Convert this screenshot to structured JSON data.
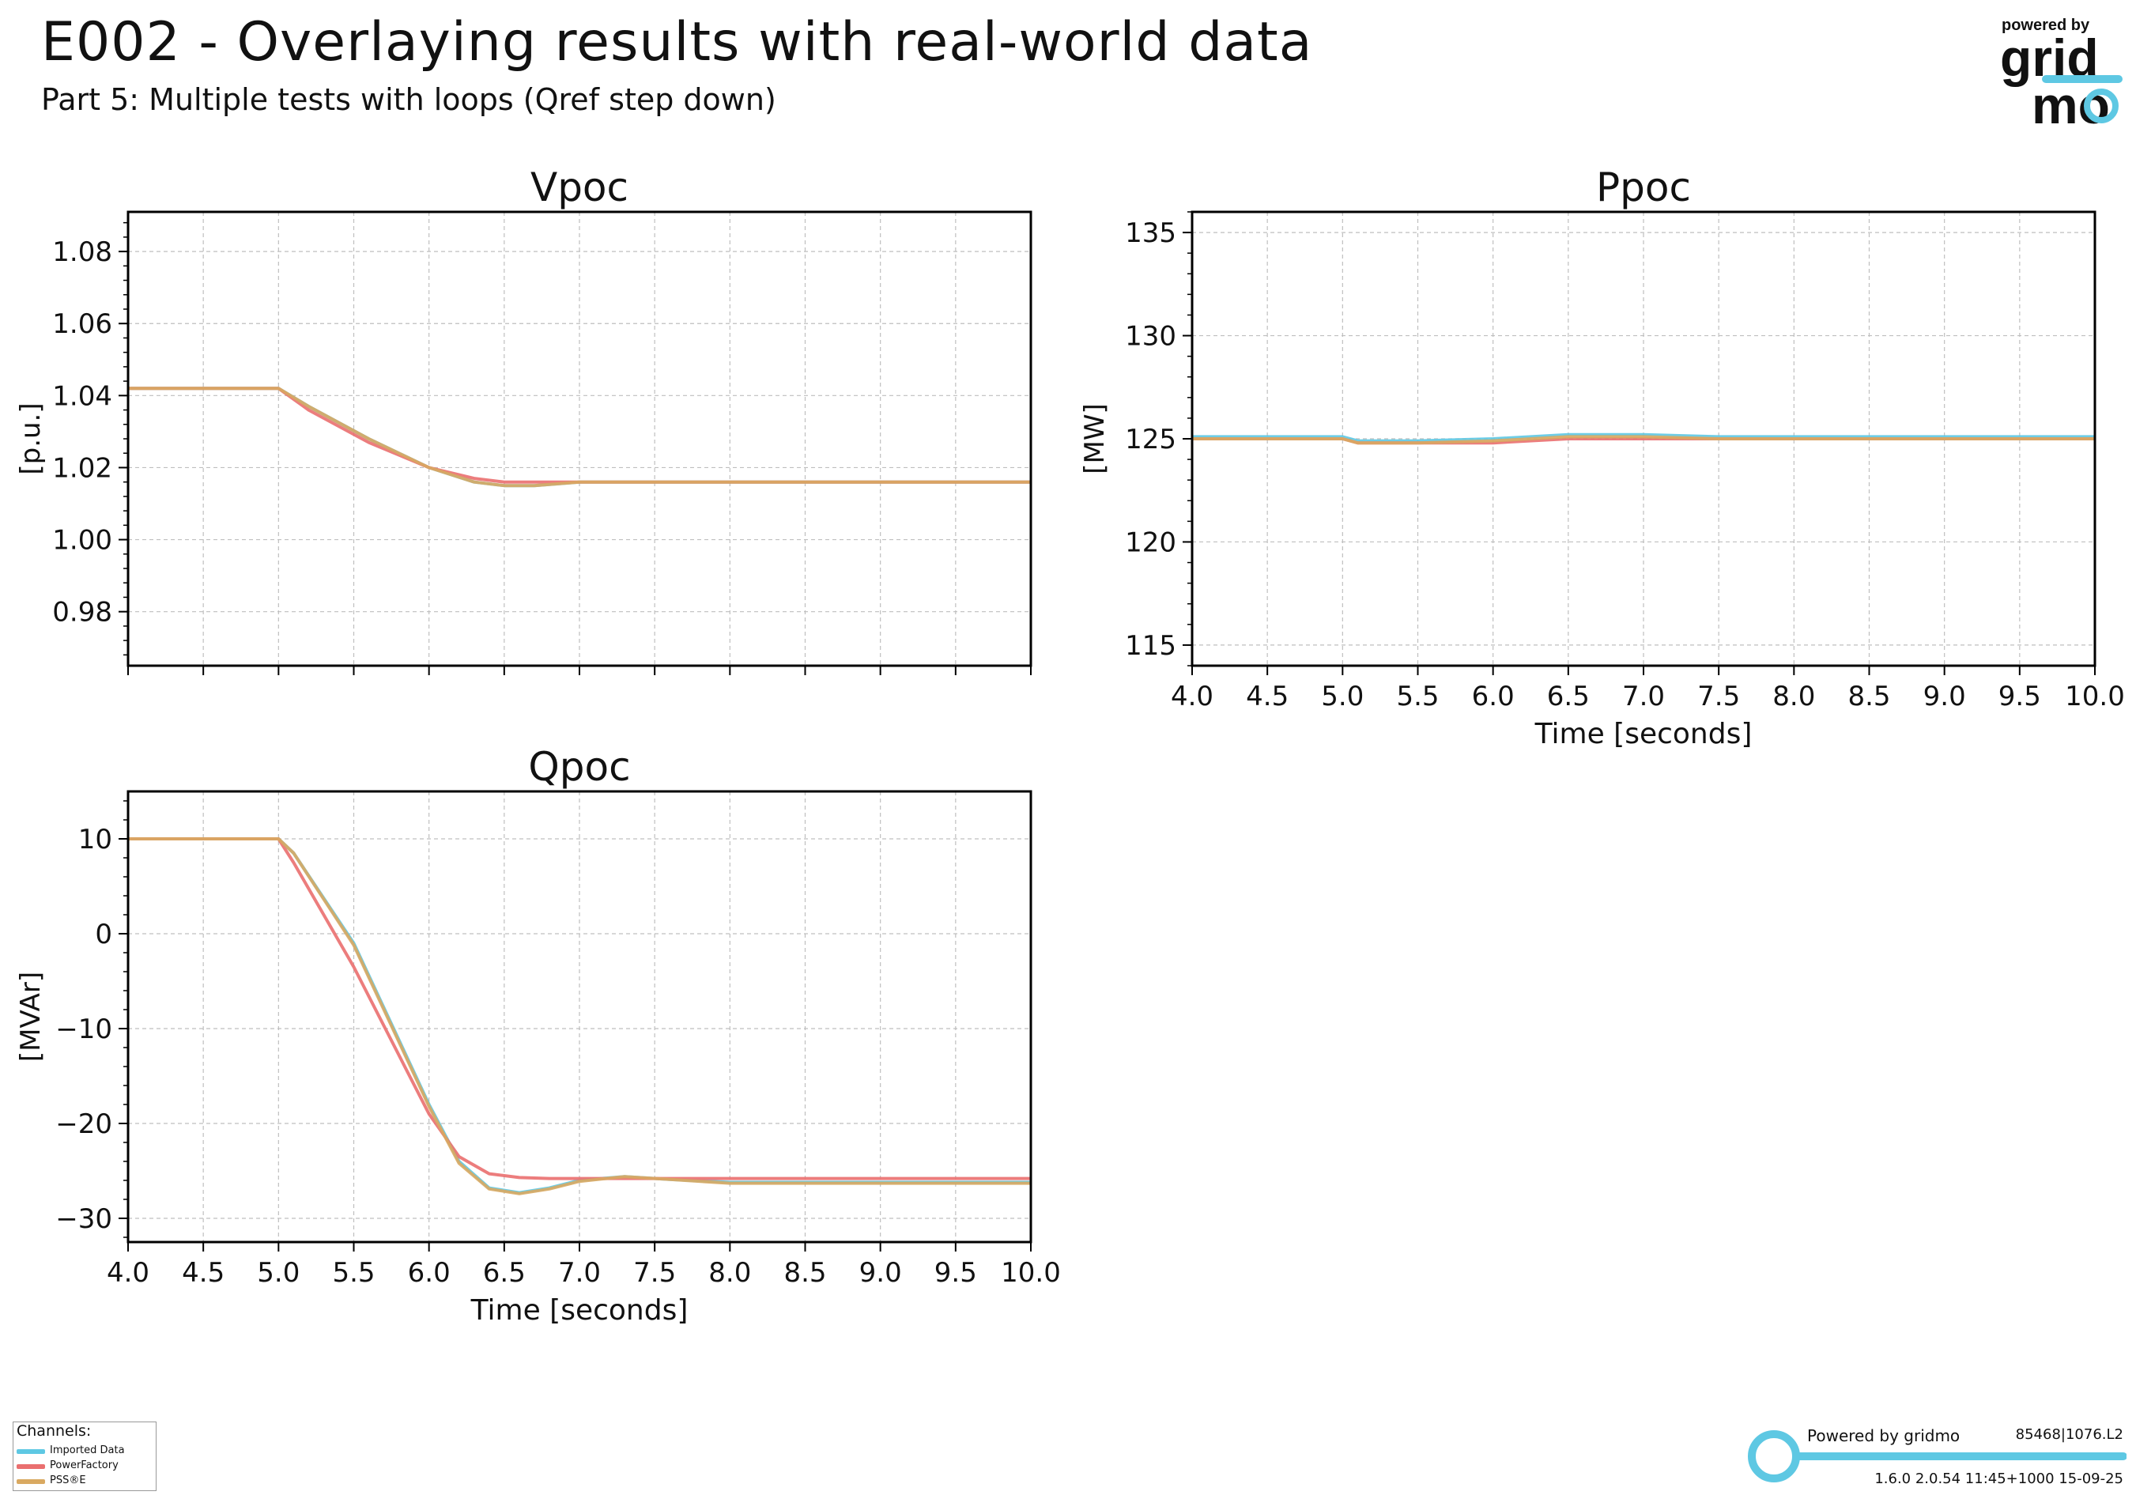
{
  "title": "E002 - Overlaying results with real-world data",
  "subtitle": "Part 5: Multiple tests with loops (Qref step down)",
  "logo": {
    "line1": "powered by",
    "line2": "grid",
    "line3": "mo"
  },
  "colors": {
    "imported": "#5ec8e3",
    "powerfactory": "#ea6f6f",
    "psse": "#d9a961",
    "grid": "#bfbfbf",
    "accent": "#5ec8e3"
  },
  "legend": {
    "title": "Channels:",
    "items": [
      {
        "label": "Imported Data",
        "color": "#5ec8e3"
      },
      {
        "label": "PowerFactory",
        "color": "#ea6f6f"
      },
      {
        "label": "PSS®E",
        "color": "#d9a961"
      }
    ]
  },
  "footer": {
    "powered": "Powered by gridmo",
    "code": "85468|1076.L2",
    "version": "1.6.0  2.0.54  11:45+1000 15-09-25"
  },
  "chart_data": [
    {
      "type": "line",
      "title": "Vpoc",
      "xlabel": "",
      "ylabel": "[p.u.]",
      "xlim": [
        4.0,
        10.0
      ],
      "ylim": [
        0.965,
        1.091
      ],
      "xticks": [
        4.0,
        4.5,
        5.0,
        5.5,
        6.0,
        6.5,
        7.0,
        7.5,
        8.0,
        8.5,
        9.0,
        9.5,
        10.0
      ],
      "yticks": [
        0.98,
        1.0,
        1.02,
        1.04,
        1.06,
        1.08
      ],
      "ytick_labels": [
        "0.98",
        "1.00",
        "1.02",
        "1.04",
        "1.06",
        "1.08"
      ],
      "show_xtick_labels": false,
      "grid": true,
      "series": [
        {
          "name": "Imported Data",
          "x": [
            4.0,
            5.0,
            5.2,
            5.6,
            6.0,
            6.3,
            6.5,
            6.7,
            7.0,
            7.5,
            8.0,
            9.0,
            10.0
          ],
          "y": [
            1.042,
            1.042,
            1.037,
            1.028,
            1.02,
            1.016,
            1.015,
            1.015,
            1.016,
            1.016,
            1.016,
            1.016,
            1.016
          ]
        },
        {
          "name": "PowerFactory",
          "x": [
            4.0,
            5.0,
            5.2,
            5.6,
            6.0,
            6.3,
            6.5,
            6.7,
            7.0,
            7.5,
            8.0,
            9.0,
            10.0
          ],
          "y": [
            1.042,
            1.042,
            1.036,
            1.027,
            1.02,
            1.017,
            1.016,
            1.016,
            1.016,
            1.016,
            1.016,
            1.016,
            1.016
          ]
        },
        {
          "name": "PSS®E",
          "x": [
            4.0,
            5.0,
            5.2,
            5.6,
            6.0,
            6.3,
            6.5,
            6.7,
            7.0,
            7.5,
            8.0,
            9.0,
            10.0
          ],
          "y": [
            1.042,
            1.042,
            1.037,
            1.028,
            1.02,
            1.016,
            1.015,
            1.015,
            1.016,
            1.016,
            1.016,
            1.016,
            1.016
          ]
        }
      ]
    },
    {
      "type": "line",
      "title": "Ppoc",
      "xlabel": "Time [seconds]",
      "ylabel": "[MW]",
      "xlim": [
        4.0,
        10.0
      ],
      "ylim": [
        114.0,
        136.0
      ],
      "xticks": [
        4.0,
        4.5,
        5.0,
        5.5,
        6.0,
        6.5,
        7.0,
        7.5,
        8.0,
        8.5,
        9.0,
        9.5,
        10.0
      ],
      "xtick_labels": [
        "4.0",
        "4.5",
        "5.0",
        "5.5",
        "6.0",
        "6.5",
        "7.0",
        "7.5",
        "8.0",
        "8.5",
        "9.0",
        "9.5",
        "10.0"
      ],
      "yticks": [
        115,
        120,
        125,
        130,
        135
      ],
      "ytick_labels": [
        "115",
        "120",
        "125",
        "130",
        "135"
      ],
      "show_xtick_labels": true,
      "grid": true,
      "series": [
        {
          "name": "Imported Data",
          "x": [
            4.0,
            5.0,
            5.1,
            5.5,
            6.0,
            6.5,
            7.0,
            7.5,
            8.0,
            9.0,
            10.0
          ],
          "y": [
            125.1,
            125.1,
            124.9,
            124.9,
            125.0,
            125.2,
            125.2,
            125.1,
            125.1,
            125.1,
            125.1
          ]
        },
        {
          "name": "PowerFactory",
          "x": [
            4.0,
            5.0,
            5.1,
            5.5,
            6.0,
            6.5,
            7.0,
            7.5,
            8.0,
            9.0,
            10.0
          ],
          "y": [
            125.0,
            125.0,
            124.8,
            124.8,
            124.8,
            125.0,
            125.0,
            125.0,
            125.0,
            125.0,
            125.0
          ]
        },
        {
          "name": "PSS®E",
          "x": [
            4.0,
            5.0,
            5.1,
            5.5,
            6.0,
            6.5,
            7.0,
            7.5,
            8.0,
            9.0,
            10.0
          ],
          "y": [
            125.0,
            125.0,
            124.8,
            124.8,
            124.9,
            125.1,
            125.1,
            125.0,
            125.0,
            125.0,
            125.0
          ]
        }
      ]
    },
    {
      "type": "line",
      "title": "Qpoc",
      "xlabel": "Time [seconds]",
      "ylabel": "[MVAr]",
      "xlim": [
        4.0,
        10.0
      ],
      "ylim": [
        -32.5,
        15.0
      ],
      "xticks": [
        4.0,
        4.5,
        5.0,
        5.5,
        6.0,
        6.5,
        7.0,
        7.5,
        8.0,
        8.5,
        9.0,
        9.5,
        10.0
      ],
      "xtick_labels": [
        "4.0",
        "4.5",
        "5.0",
        "5.5",
        "6.0",
        "6.5",
        "7.0",
        "7.5",
        "8.0",
        "8.5",
        "9.0",
        "9.5",
        "10.0"
      ],
      "yticks": [
        -30,
        -20,
        -10,
        0,
        10
      ],
      "ytick_labels": [
        "−30",
        "−20",
        "−10",
        "0",
        "10"
      ],
      "show_xtick_labels": true,
      "grid": true,
      "series": [
        {
          "name": "Imported Data",
          "x": [
            4.0,
            5.0,
            5.1,
            5.5,
            6.0,
            6.2,
            6.4,
            6.6,
            6.8,
            7.0,
            7.3,
            7.6,
            8.0,
            9.0,
            10.0
          ],
          "y": [
            10.0,
            10.0,
            8.5,
            -1.0,
            -18.0,
            -24.0,
            -26.8,
            -27.3,
            -26.8,
            -26.0,
            -25.6,
            -25.9,
            -26.2,
            -26.2,
            -26.2
          ]
        },
        {
          "name": "PowerFactory",
          "x": [
            4.0,
            5.0,
            5.1,
            5.5,
            6.0,
            6.2,
            6.4,
            6.6,
            6.8,
            7.0,
            7.3,
            7.6,
            8.0,
            9.0,
            10.0
          ],
          "y": [
            10.0,
            10.0,
            7.5,
            -3.5,
            -19.0,
            -23.5,
            -25.3,
            -25.7,
            -25.8,
            -25.8,
            -25.8,
            -25.8,
            -25.8,
            -25.8,
            -25.8
          ]
        },
        {
          "name": "PSS®E",
          "x": [
            4.0,
            5.0,
            5.1,
            5.5,
            6.0,
            6.2,
            6.4,
            6.6,
            6.8,
            7.0,
            7.3,
            7.6,
            8.0,
            9.0,
            10.0
          ],
          "y": [
            10.0,
            10.0,
            8.5,
            -1.2,
            -18.2,
            -24.2,
            -26.9,
            -27.4,
            -26.9,
            -26.1,
            -25.6,
            -25.9,
            -26.3,
            -26.3,
            -26.3
          ]
        }
      ]
    }
  ]
}
